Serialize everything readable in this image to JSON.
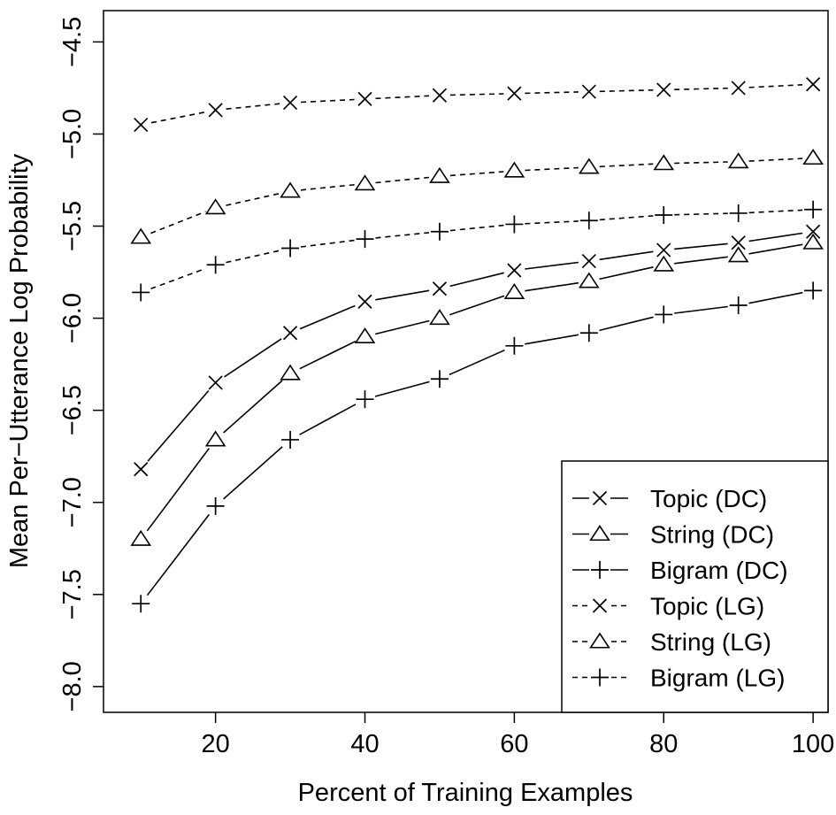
{
  "chart_data": {
    "type": "line",
    "xlabel": "Percent of Training Examples",
    "ylabel": "Mean Per−Utterance Log Probability",
    "xlim": [
      5,
      102
    ],
    "ylim": [
      -8.14,
      -4.33
    ],
    "x_ticks": [
      20,
      40,
      60,
      80,
      100
    ],
    "x_tick_labels": [
      "20",
      "40",
      "60",
      "80",
      "100"
    ],
    "y_ticks": [
      -8.0,
      -7.5,
      -7.0,
      -6.5,
      -6.0,
      -5.5,
      -5.0,
      -4.5
    ],
    "y_tick_labels": [
      "−8.0",
      "−7.5",
      "−7.0",
      "−6.5",
      "−6.0",
      "−5.5",
      "−5.0",
      "−4.5"
    ],
    "grid": false,
    "legend_position": "bottom-right",
    "x": [
      10,
      20,
      30,
      40,
      50,
      60,
      70,
      80,
      90,
      100
    ],
    "series": [
      {
        "name": "Topic (DC)",
        "line": "solid",
        "marker": "x",
        "values": [
          -6.82,
          -6.35,
          -6.08,
          -5.91,
          -5.84,
          -5.74,
          -5.69,
          -5.63,
          -5.59,
          -5.53
        ]
      },
      {
        "name": "String (DC)",
        "line": "solid",
        "marker": "triangle",
        "values": [
          -7.2,
          -6.66,
          -6.3,
          -6.1,
          -6.0,
          -5.86,
          -5.8,
          -5.71,
          -5.66,
          -5.59
        ]
      },
      {
        "name": "Bigram (DC)",
        "line": "solid",
        "marker": "plus",
        "values": [
          -7.55,
          -7.02,
          -6.66,
          -6.44,
          -6.33,
          -6.15,
          -6.08,
          -5.98,
          -5.93,
          -5.85
        ]
      },
      {
        "name": "Topic (LG)",
        "line": "dashed",
        "marker": "x",
        "values": [
          -4.95,
          -4.87,
          -4.83,
          -4.81,
          -4.79,
          -4.78,
          -4.77,
          -4.76,
          -4.75,
          -4.73
        ]
      },
      {
        "name": "String (LG)",
        "line": "dashed",
        "marker": "triangle",
        "values": [
          -5.56,
          -5.4,
          -5.31,
          -5.27,
          -5.23,
          -5.2,
          -5.18,
          -5.16,
          -5.15,
          -5.13
        ]
      },
      {
        "name": "Bigram (LG)",
        "line": "dashed",
        "marker": "plus",
        "values": [
          -5.86,
          -5.71,
          -5.62,
          -5.57,
          -5.53,
          -5.49,
          -5.47,
          -5.44,
          -5.43,
          -5.41
        ]
      }
    ],
    "colors": {
      "line": "#000000",
      "background": "#ffffff"
    }
  }
}
